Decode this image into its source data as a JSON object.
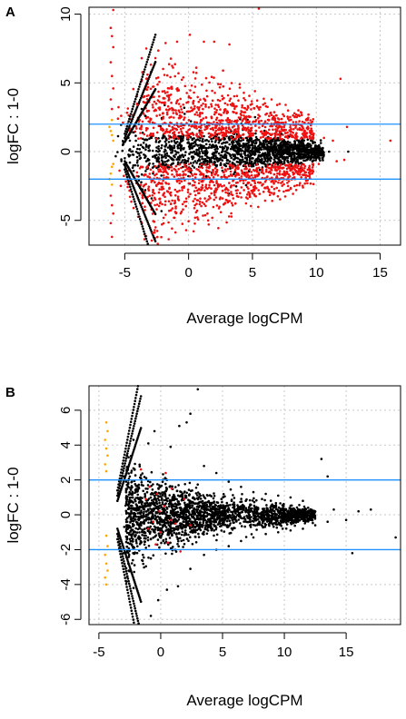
{
  "colors": {
    "background": "#ffffff",
    "nonsig": "#000000",
    "sig": "#ee1111",
    "lowcount": "#ffa500",
    "threshold": "#1e90ff",
    "grid": "#c8c8c8"
  },
  "chart_data": [
    {
      "panel": "A",
      "type": "scatter",
      "xlabel": "Average logCPM",
      "ylabel": "logFC : 1-0",
      "xlim": [
        -7.8,
        16.6
      ],
      "ylim": [
        -6.8,
        10.5
      ],
      "xticks": [
        -5,
        0,
        5,
        10,
        15
      ],
      "yticks": [
        -5,
        0,
        5,
        10
      ],
      "grid": true,
      "hlines": [
        2,
        -2
      ],
      "series": [
        {
          "role": "low-count",
          "color": "#ffa500",
          "points": [
            [
              -6.0,
              1.2
            ],
            [
              -6.1,
              1.5
            ],
            [
              -5.9,
              0.8
            ],
            [
              -6.2,
              1.8
            ],
            [
              -6.0,
              -1.1
            ],
            [
              -6.1,
              -1.6
            ],
            [
              -5.9,
              -0.9
            ],
            [
              -6.2,
              -2.0
            ],
            [
              -6.0,
              2.3
            ],
            [
              -6.0,
              -2.4
            ]
          ]
        },
        {
          "role": "significant",
          "color": "#ee1111",
          "points": [
            [
              -6.1,
              9.0
            ],
            [
              -6.0,
              8.4
            ],
            [
              -5.9,
              7.6
            ],
            [
              -6.1,
              6.5
            ],
            [
              -6.0,
              5.5
            ],
            [
              -5.9,
              4.6
            ],
            [
              -6.1,
              3.8
            ],
            [
              -6.0,
              3.1
            ],
            [
              -6.1,
              -3.2
            ],
            [
              -6.0,
              -3.9
            ],
            [
              -5.9,
              -4.5
            ],
            [
              -6.1,
              -5.2
            ],
            [
              -6.0,
              -6.2
            ],
            [
              -5.9,
              10.3
            ],
            [
              -4.0,
              3.4
            ],
            [
              -3.3,
              5.3
            ],
            [
              -2.6,
              6.8
            ],
            [
              -1.8,
              7.9
            ],
            [
              -0.9,
              8.0
            ],
            [
              0.1,
              8.5
            ],
            [
              1.2,
              8.0
            ],
            [
              2.0,
              8.0
            ],
            [
              3.2,
              7.8
            ],
            [
              5.5,
              10.4
            ],
            [
              -1.5,
              4.6
            ],
            [
              0.6,
              6.1
            ],
            [
              2.7,
              5.9
            ],
            [
              4.0,
              4.9
            ],
            [
              5.2,
              4.4
            ],
            [
              6.5,
              3.8
            ],
            [
              7.6,
              3.4
            ],
            [
              8.6,
              3.0
            ],
            [
              11.9,
              5.3
            ],
            [
              -2.5,
              -4.2
            ],
            [
              -1.0,
              -4.0
            ],
            [
              0.5,
              -3.9
            ],
            [
              2.0,
              -3.5
            ],
            [
              3.5,
              -3.4
            ],
            [
              5.0,
              -3.0
            ],
            [
              6.5,
              -3.0
            ],
            [
              8.0,
              -2.7
            ],
            [
              9.3,
              -2.3
            ],
            [
              -1.9,
              -3.0
            ],
            [
              -0.5,
              -2.8
            ],
            [
              1.0,
              -2.6
            ],
            [
              2.5,
              -2.4
            ],
            [
              4.3,
              -2.3
            ],
            [
              6.0,
              -2.2
            ],
            [
              -2.8,
              -5.9
            ],
            [
              12.4,
              1.8
            ],
            [
              15.8,
              0.8
            ],
            [
              -3.0,
              2.4
            ],
            [
              -2.0,
              2.8
            ],
            [
              -1.0,
              3.0
            ],
            [
              0.5,
              2.7
            ],
            [
              1.8,
              2.5
            ],
            [
              3.0,
              2.8
            ],
            [
              4.5,
              2.4
            ],
            [
              6.0,
              2.2
            ],
            [
              7.4,
              2.1
            ],
            [
              8.7,
              1.6
            ],
            [
              9.8,
              1.3
            ],
            [
              10.6,
              1.0
            ],
            [
              11.3,
              0.8
            ],
            [
              -2.8,
              -2.1
            ],
            [
              -1.6,
              -1.9
            ],
            [
              -0.3,
              -2.1
            ],
            [
              1.2,
              -1.8
            ],
            [
              2.8,
              -1.7
            ],
            [
              4.2,
              -1.5
            ],
            [
              5.8,
              -1.4
            ],
            [
              7.2,
              -1.2
            ],
            [
              8.8,
              -1.1
            ],
            [
              10.2,
              -0.9
            ],
            [
              11.6,
              -0.7
            ],
            [
              12.2,
              -0.6
            ]
          ]
        },
        {
          "role": "non-significant",
          "color": "#000000",
          "points": [
            [
              -4.6,
              0.8
            ],
            [
              -4.3,
              1.4
            ],
            [
              -3.9,
              2.0
            ],
            [
              -3.4,
              2.6
            ],
            [
              -4.6,
              -0.8
            ],
            [
              -4.3,
              -1.4
            ],
            [
              -3.9,
              -2.1
            ],
            [
              -3.4,
              -2.8
            ],
            [
              -2.9,
              -3.4
            ],
            [
              -2.5,
              0.3
            ],
            [
              -2.0,
              -0.4
            ],
            [
              -1.0,
              0.6
            ],
            [
              0.0,
              -0.5
            ],
            [
              1.0,
              0.4
            ],
            [
              2.0,
              -0.3
            ],
            [
              3.0,
              0.3
            ],
            [
              4.0,
              -0.2
            ],
            [
              5.0,
              0.2
            ],
            [
              6.0,
              -0.1
            ],
            [
              7.0,
              0.1
            ],
            [
              8.0,
              -0.1
            ],
            [
              9.0,
              0.1
            ],
            [
              10.0,
              -0.1
            ],
            [
              11.0,
              0.0
            ],
            [
              12.5,
              0.0
            ]
          ]
        }
      ]
    },
    {
      "panel": "B",
      "type": "scatter",
      "xlabel": "Average logCPM",
      "ylabel": "logFC : 1-0",
      "xlim": [
        -5.8,
        19.4
      ],
      "ylim": [
        -6.3,
        7.4
      ],
      "xticks": [
        -5,
        0,
        5,
        10,
        15
      ],
      "yticks": [
        -6,
        -4,
        -2,
        0,
        2,
        4,
        6
      ],
      "grid": true,
      "hlines": [
        2,
        -2
      ],
      "series": [
        {
          "role": "low-count",
          "color": "#ffa500",
          "points": [
            [
              -4.4,
              5.3
            ],
            [
              -4.3,
              4.8
            ],
            [
              -4.5,
              4.3
            ],
            [
              -4.4,
              3.8
            ],
            [
              -4.3,
              3.4
            ],
            [
              -4.5,
              2.9
            ],
            [
              -4.4,
              2.5
            ],
            [
              -4.4,
              -1.2
            ],
            [
              -4.3,
              -1.8
            ],
            [
              -4.5,
              -2.3
            ],
            [
              -4.4,
              -2.8
            ],
            [
              -4.3,
              -3.2
            ],
            [
              -4.5,
              -3.6
            ],
            [
              -4.4,
              -4.0
            ]
          ]
        },
        {
          "role": "non-significant",
          "color": "#000000",
          "points": [
            [
              -3.4,
              1.2
            ],
            [
              -3.0,
              2.2
            ],
            [
              -2.6,
              3.3
            ],
            [
              -2.2,
              4.3
            ],
            [
              -3.4,
              -1.2
            ],
            [
              -3.0,
              -2.2
            ],
            [
              -2.6,
              -3.2
            ],
            [
              -2.2,
              -4.2
            ],
            [
              -1.0,
              4.1
            ],
            [
              -0.5,
              4.8
            ],
            [
              0.8,
              3.9
            ],
            [
              1.5,
              5.1
            ],
            [
              2.1,
              5.3
            ],
            [
              -0.2,
              -4.9
            ],
            [
              0.5,
              -4.3
            ],
            [
              1.4,
              -4.1
            ],
            [
              2.4,
              -3.1
            ],
            [
              3.5,
              2.8
            ],
            [
              4.5,
              2.4
            ],
            [
              5.5,
              1.9
            ],
            [
              6.5,
              1.6
            ],
            [
              7.5,
              1.3
            ],
            [
              8.5,
              1.2
            ],
            [
              9.5,
              1.1
            ],
            [
              10.5,
              1.0
            ],
            [
              11.5,
              0.8
            ],
            [
              13.0,
              3.2
            ],
            [
              13.5,
              2.2
            ],
            [
              14.0,
              0.3
            ],
            [
              15.0,
              -0.3
            ],
            [
              16.0,
              0.2
            ],
            [
              17.0,
              0.3
            ],
            [
              19.0,
              -1.3
            ],
            [
              3.5,
              -2.3
            ],
            [
              4.5,
              -2.0
            ],
            [
              5.5,
              -1.8
            ],
            [
              6.5,
              -1.5
            ],
            [
              7.5,
              -1.3
            ],
            [
              8.5,
              -1.1
            ],
            [
              9.5,
              -1.0
            ],
            [
              10.5,
              -0.9
            ],
            [
              11.5,
              -0.8
            ],
            [
              12.5,
              -0.6
            ],
            [
              13.5,
              -0.4
            ],
            [
              15.5,
              -2.2
            ],
            [
              3.0,
              7.2
            ],
            [
              2.4,
              5.8
            ],
            [
              -0.8,
              -5.8
            ],
            [
              0.5,
              2.0
            ],
            [
              -1.2,
              1.5
            ],
            [
              0.2,
              -1.5
            ],
            [
              -0.8,
              -2.5
            ]
          ]
        },
        {
          "role": "significant",
          "color": "#ee1111",
          "points": [
            [
              -1.6,
              2.6
            ],
            [
              -1.2,
              0.9
            ],
            [
              -0.9,
              1.6
            ],
            [
              -0.6,
              -0.4
            ],
            [
              -0.3,
              1.2
            ],
            [
              0.0,
              -1.0
            ],
            [
              0.3,
              0.5
            ],
            [
              0.6,
              -1.6
            ],
            [
              0.9,
              1.5
            ],
            [
              1.2,
              -0.5
            ],
            [
              1.6,
              -2.1
            ],
            [
              -0.4,
              -1.7
            ],
            [
              -1.0,
              -0.8
            ],
            [
              0.4,
              2.4
            ],
            [
              1.9,
              0.9
            ],
            [
              2.4,
              -0.6
            ],
            [
              -0.1,
              0.2
            ],
            [
              0.8,
              -0.3
            ]
          ]
        }
      ]
    }
  ]
}
